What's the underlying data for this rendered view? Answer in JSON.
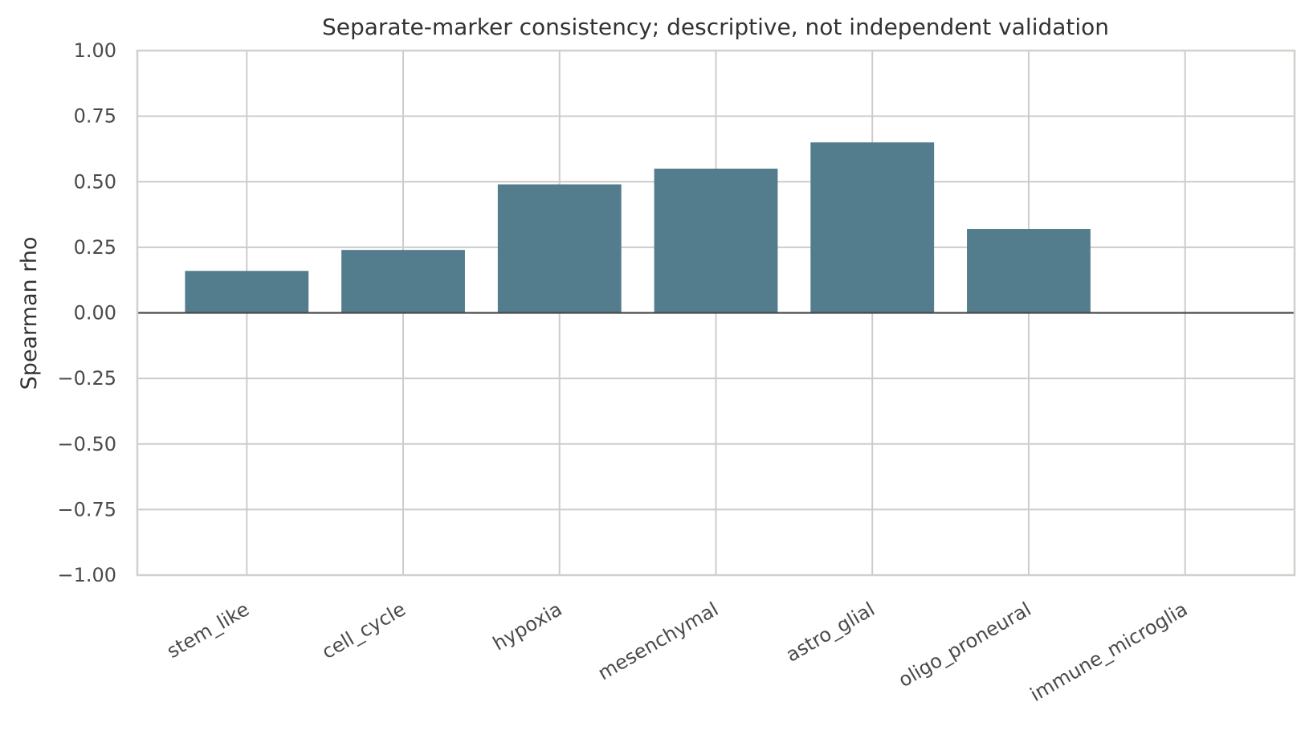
{
  "chart_data": {
    "type": "bar",
    "title": "Separate-marker consistency; descriptive, not independent validation",
    "xlabel": "",
    "ylabel": "Spearman rho",
    "categories": [
      "stem_like",
      "cell_cycle",
      "hypoxia",
      "mesenchymal",
      "astro_glial",
      "oligo_proneural",
      "immune_microglia"
    ],
    "values": [
      0.16,
      0.24,
      0.49,
      0.55,
      0.65,
      0.32,
      0.0
    ],
    "ylim": [
      -1.0,
      1.0
    ],
    "yticks": [
      1.0,
      0.75,
      0.5,
      0.25,
      0.0,
      -0.25,
      -0.5,
      -0.75,
      -1.0
    ],
    "ytick_labels": [
      "1.00",
      "0.75",
      "0.50",
      "0.25",
      "0.00",
      "−0.25",
      "−0.50",
      "−0.75",
      "−1.00"
    ],
    "bar_color": "#537d8d",
    "grid": true,
    "legend": "none",
    "reference_line_y": 0.0
  }
}
